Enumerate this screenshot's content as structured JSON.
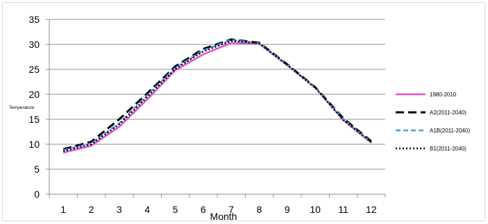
{
  "chart_data": {
    "type": "line",
    "title": "",
    "xlabel": "Month",
    "ylabel": "Temperature",
    "categories": [
      "1",
      "2",
      "3",
      "4",
      "5",
      "6",
      "7",
      "8",
      "9",
      "10",
      "11",
      "12"
    ],
    "ylim": [
      0,
      35
    ],
    "yticks": [
      "0",
      "5",
      "10",
      "15",
      "20",
      "25",
      "30",
      "35"
    ],
    "grid": "horizontal",
    "legend": "right",
    "series": [
      {
        "name": "1980-2010",
        "color": "#e84cd6",
        "style": "solid",
        "values": [
          8.3,
          9.7,
          13.5,
          19.0,
          24.8,
          28.0,
          30.3,
          30.1,
          25.8,
          21.3,
          14.8,
          10.3
        ]
      },
      {
        "name": "A2(2011-2040)",
        "color": "#000000",
        "style": "longdash",
        "values": [
          9.0,
          10.5,
          15.0,
          20.2,
          25.6,
          29.1,
          31.0,
          30.3,
          26.0,
          21.4,
          15.2,
          10.6
        ]
      },
      {
        "name": "A1B(2011-2040)",
        "color": "#4aa3d8",
        "style": "dash",
        "values": [
          8.8,
          10.2,
          14.2,
          19.8,
          25.3,
          28.8,
          30.9,
          30.2,
          25.9,
          21.3,
          15.0,
          10.4
        ]
      },
      {
        "name": "B1(2011-2040)",
        "color": "#000000",
        "style": "dot",
        "values": [
          8.6,
          10.0,
          14.0,
          19.5,
          25.1,
          28.6,
          30.7,
          30.2,
          25.9,
          21.3,
          14.9,
          10.4
        ]
      }
    ]
  }
}
